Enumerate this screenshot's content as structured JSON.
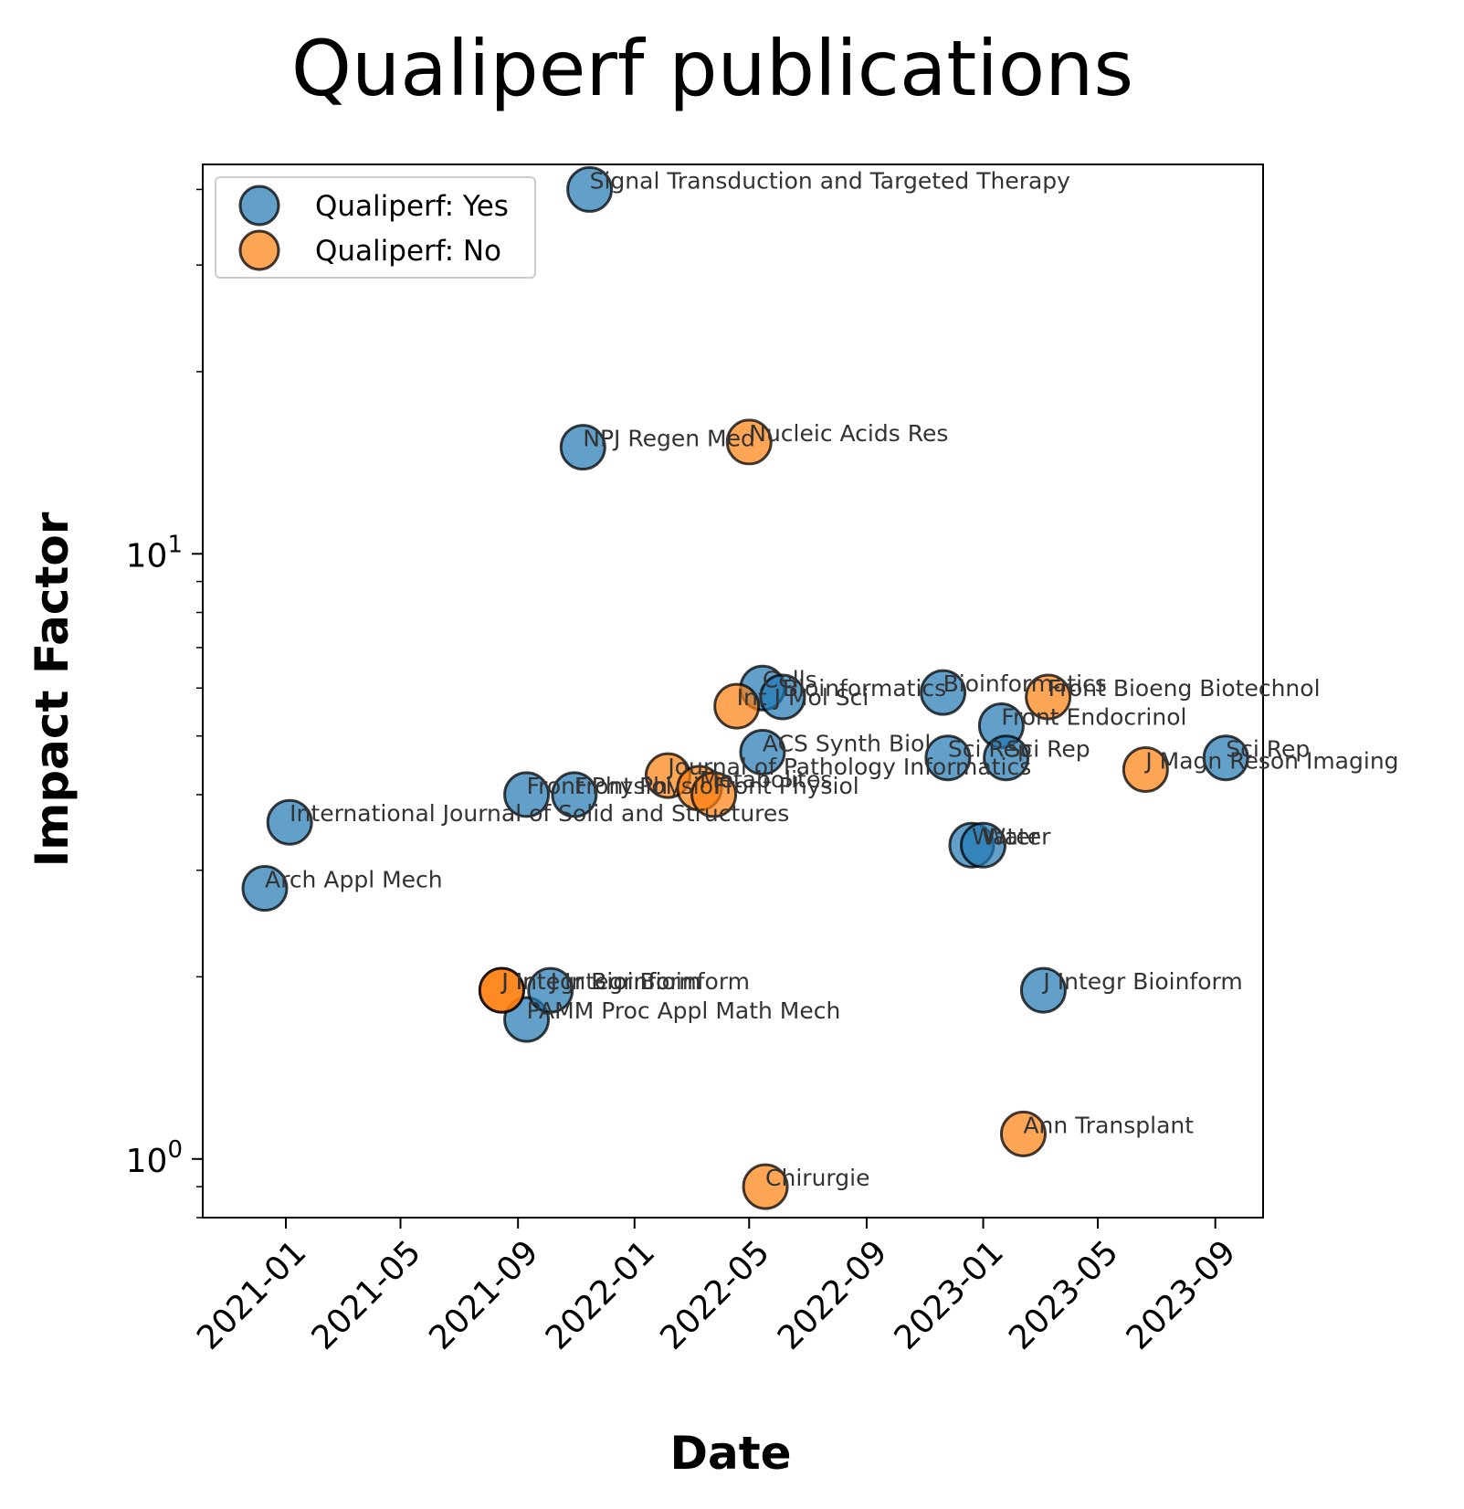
{
  "chart_data": {
    "type": "scatter",
    "title": "Qualiperf publications",
    "xlabel": "Date",
    "ylabel": "Impact Factor",
    "yscale": "log",
    "ylim": [
      0.8,
      44
    ],
    "xlim": [
      "2020-10-06",
      "2023-10-21"
    ],
    "x_ticks": [
      "2021-01",
      "2021-05",
      "2021-09",
      "2022-01",
      "2022-05",
      "2022-09",
      "2023-01",
      "2023-05",
      "2023-09"
    ],
    "y_ticks": [
      {
        "value": 1,
        "base": "10",
        "exp": "0"
      },
      {
        "value": 10,
        "base": "10",
        "exp": "1"
      }
    ],
    "legend": {
      "position": "top-left",
      "entries": [
        {
          "label": "Qualiperf: Yes",
          "color": "#1f77b4"
        },
        {
          "label": "Qualiperf: No",
          "color": "#ff7f0e"
        }
      ]
    },
    "series": [
      {
        "name": "Qualiperf: Yes",
        "color": "#1f77b4",
        "points": [
          {
            "x": "2020-12-10",
            "y": 2.8,
            "label": "Arch Appl Mech"
          },
          {
            "x": "2021-01-05",
            "y": 3.6,
            "label": "International Journal of Solid and Structures"
          },
          {
            "x": "2021-09-10",
            "y": 4.0,
            "label": "Front Physiol"
          },
          {
            "x": "2021-09-10",
            "y": 1.7,
            "label": "PAMM Proc Appl Math Mech"
          },
          {
            "x": "2021-10-05",
            "y": 1.9,
            "label": "J Integr Bioinform"
          },
          {
            "x": "2021-10-30",
            "y": 4.0,
            "label": "Front Physiol"
          },
          {
            "x": "2021-11-08",
            "y": 15.0,
            "label": "NPJ Regen Med"
          },
          {
            "x": "2021-11-15",
            "y": 40.0,
            "label": "Signal Transduction and Targeted Therapy"
          },
          {
            "x": "2022-05-15",
            "y": 4.7,
            "label": "ACS Synth Biol"
          },
          {
            "x": "2022-05-15",
            "y": 6.0,
            "label": "Cells"
          },
          {
            "x": "2022-06-05",
            "y": 5.8,
            "label": "Bioinformatics"
          },
          {
            "x": "2022-11-20",
            "y": 5.9,
            "label": "Bioinformatics"
          },
          {
            "x": "2022-11-25",
            "y": 4.6,
            "label": "Sci Rep"
          },
          {
            "x": "2022-12-20",
            "y": 3.3,
            "label": "Water"
          },
          {
            "x": "2023-01-01",
            "y": 3.3,
            "label": "Water"
          },
          {
            "x": "2023-01-20",
            "y": 5.2,
            "label": "Front Endocrinol"
          },
          {
            "x": "2023-01-25",
            "y": 4.6,
            "label": "Sci Rep"
          },
          {
            "x": "2023-03-05",
            "y": 1.9,
            "label": "J Integr Bioinform"
          },
          {
            "x": "2023-09-12",
            "y": 4.6,
            "label": "Sci Rep"
          }
        ]
      },
      {
        "name": "Qualiperf: No",
        "color": "#ff7f0e",
        "points": [
          {
            "x": "2021-08-15",
            "y": 1.9,
            "label": "J Integr Bioinform"
          },
          {
            "x": "2021-08-15",
            "y": 1.9,
            "label": "J Integr Bioinform"
          },
          {
            "x": "2022-02-05",
            "y": 4.3,
            "label": "Journal of Pathology Informatics"
          },
          {
            "x": "2022-03-10",
            "y": 4.1,
            "label": "Metabolites"
          },
          {
            "x": "2022-03-25",
            "y": 4.0,
            "label": "Front Physiol"
          },
          {
            "x": "2022-04-18",
            "y": 5.6,
            "label": "Int J Mol Sci"
          },
          {
            "x": "2022-05-01",
            "y": 15.3,
            "label": "Nucleic Acids Res"
          },
          {
            "x": "2022-05-18",
            "y": 0.9,
            "label": "Chirurgie"
          },
          {
            "x": "2023-02-12",
            "y": 1.1,
            "label": "Ann Transplant"
          },
          {
            "x": "2023-03-10",
            "y": 5.8,
            "label": "Front Bioeng Biotechnol"
          },
          {
            "x": "2023-06-20",
            "y": 4.4,
            "label": "J Magn Reson Imaging"
          }
        ]
      }
    ]
  }
}
